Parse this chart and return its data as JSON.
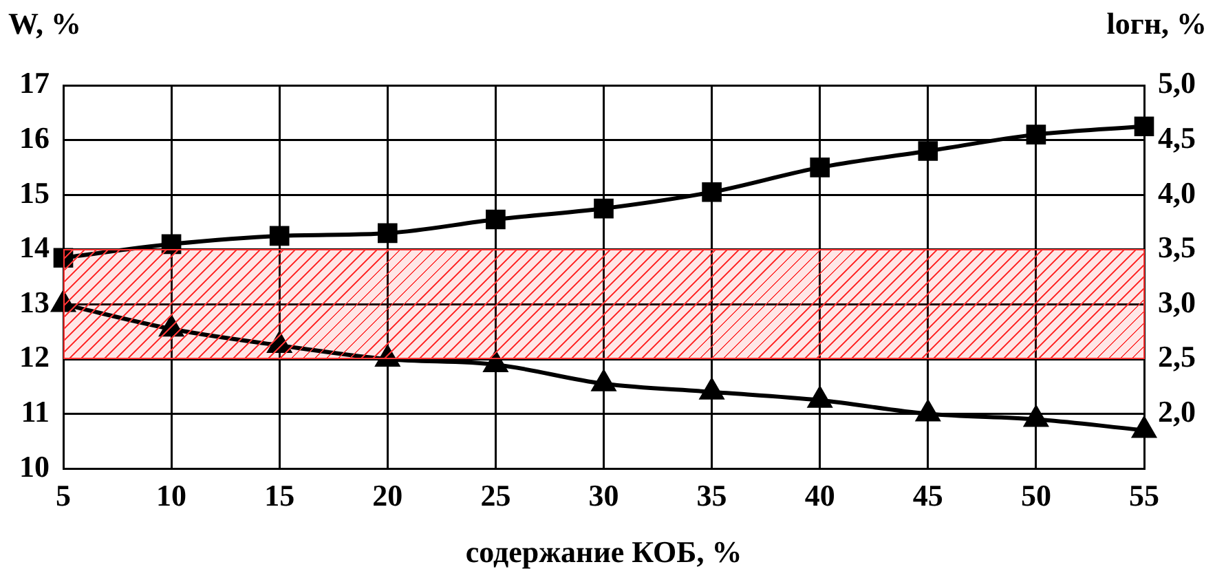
{
  "chart_data": {
    "type": "line",
    "xlabel": "содержание КОБ, %",
    "ylabel": "W, %",
    "y2label": "lогн, %",
    "x": [
      5,
      10,
      15,
      20,
      25,
      30,
      35,
      40,
      45,
      50,
      55
    ],
    "series": [
      {
        "color": "#000000",
        "marker": "square",
        "values": [
          13.85,
          14.1,
          14.25,
          14.3,
          14.55,
          14.75,
          15.05,
          15.5,
          15.8,
          16.1,
          16.25
        ]
      },
      {
        "color": "#000000",
        "marker": "triangle",
        "values": [
          13.0,
          12.55,
          12.25,
          12.0,
          11.9,
          11.55,
          11.4,
          11.25,
          11.0,
          10.9,
          10.7
        ]
      }
    ],
    "xlim": [
      5,
      55
    ],
    "xticks": [
      5,
      10,
      15,
      20,
      25,
      30,
      35,
      40,
      45,
      50,
      55
    ],
    "ylim": [
      10,
      17
    ],
    "yticks": [
      10,
      11,
      12,
      13,
      14,
      15,
      16,
      17
    ],
    "y2lim": [
      1.5,
      5.0
    ],
    "y2ticks": [
      {
        "value": 2,
        "label": "2,0"
      },
      {
        "value": 2.5,
        "label": "2,5"
      },
      {
        "value": 3,
        "label": "3,0"
      },
      {
        "value": 3.5,
        "label": "3,5"
      },
      {
        "value": 4,
        "label": "4,0"
      },
      {
        "value": 4.5,
        "label": "4,5"
      },
      {
        "value": 5,
        "label": "5,0"
      }
    ],
    "bands": [
      {
        "axis": "y",
        "from": 12,
        "to": 14,
        "color": "#ff3333"
      }
    ],
    "grid": true,
    "legend": false
  }
}
